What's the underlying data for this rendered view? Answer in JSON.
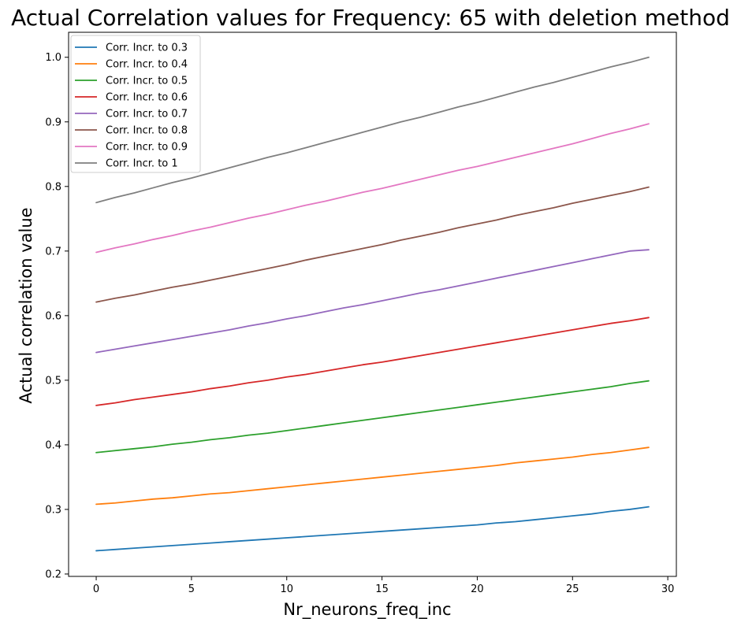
{
  "chart_data": {
    "type": "line",
    "title": "Actual Correlation values for Frequency:  65 with deletion method",
    "xlabel": "Nr_neurons_freq_inc",
    "ylabel": "Actual correlation value",
    "xlim": [
      -1.45,
      30.45
    ],
    "ylim": [
      0.1963,
      1.0387
    ],
    "xticks": [
      0,
      5,
      10,
      15,
      20,
      25,
      30
    ],
    "yticks": [
      0.2,
      0.3,
      0.4,
      0.5,
      0.6,
      0.7,
      0.8,
      0.9,
      1.0
    ],
    "ytick_labels": [
      "0.2",
      "0.3",
      "0.4",
      "0.5",
      "0.6",
      "0.7",
      "0.8",
      "0.9",
      "1.0"
    ],
    "grid": false,
    "legend_position": "top-left",
    "x": [
      0,
      1,
      2,
      3,
      4,
      5,
      6,
      7,
      8,
      9,
      10,
      11,
      12,
      13,
      14,
      15,
      16,
      17,
      18,
      19,
      20,
      21,
      22,
      23,
      24,
      25,
      26,
      27,
      28,
      29
    ],
    "series": [
      {
        "name": "Corr. Incr. to 0.3",
        "color": "#1f77b4",
        "values": [
          0.236,
          0.238,
          0.24,
          0.242,
          0.244,
          0.246,
          0.248,
          0.25,
          0.252,
          0.254,
          0.256,
          0.258,
          0.26,
          0.262,
          0.264,
          0.266,
          0.268,
          0.27,
          0.272,
          0.274,
          0.276,
          0.279,
          0.281,
          0.284,
          0.287,
          0.29,
          0.293,
          0.297,
          0.3,
          0.304
        ]
      },
      {
        "name": "Corr. Incr. to 0.4",
        "color": "#ff7f0e",
        "values": [
          0.308,
          0.31,
          0.313,
          0.316,
          0.318,
          0.321,
          0.324,
          0.326,
          0.329,
          0.332,
          0.335,
          0.338,
          0.341,
          0.344,
          0.347,
          0.35,
          0.353,
          0.356,
          0.359,
          0.362,
          0.365,
          0.368,
          0.372,
          0.375,
          0.378,
          0.381,
          0.385,
          0.388,
          0.392,
          0.396
        ]
      },
      {
        "name": "Corr. Incr. to 0.5",
        "color": "#2ca02c",
        "values": [
          0.388,
          0.391,
          0.394,
          0.397,
          0.401,
          0.404,
          0.408,
          0.411,
          0.415,
          0.418,
          0.422,
          0.426,
          0.43,
          0.434,
          0.438,
          0.442,
          0.446,
          0.45,
          0.454,
          0.458,
          0.462,
          0.466,
          0.47,
          0.474,
          0.478,
          0.482,
          0.486,
          0.49,
          0.495,
          0.499
        ]
      },
      {
        "name": "Corr. Incr. to 0.6",
        "color": "#d62728",
        "values": [
          0.461,
          0.465,
          0.47,
          0.474,
          0.478,
          0.482,
          0.487,
          0.491,
          0.496,
          0.5,
          0.505,
          0.509,
          0.514,
          0.519,
          0.524,
          0.528,
          0.533,
          0.538,
          0.543,
          0.548,
          0.553,
          0.558,
          0.563,
          0.568,
          0.573,
          0.578,
          0.583,
          0.588,
          0.592,
          0.597
        ]
      },
      {
        "name": "Corr. Incr. to 0.7",
        "color": "#9467bd",
        "values": [
          0.543,
          0.548,
          0.553,
          0.558,
          0.563,
          0.568,
          0.573,
          0.578,
          0.584,
          0.589,
          0.595,
          0.6,
          0.606,
          0.612,
          0.617,
          0.623,
          0.629,
          0.635,
          0.64,
          0.646,
          0.652,
          0.658,
          0.664,
          0.67,
          0.676,
          0.682,
          0.688,
          0.694,
          0.7,
          0.702
        ]
      },
      {
        "name": "Corr. Incr. to 0.8",
        "color": "#8c564b",
        "values": [
          0.621,
          0.627,
          0.632,
          0.638,
          0.644,
          0.649,
          0.655,
          0.661,
          0.667,
          0.673,
          0.679,
          0.686,
          0.692,
          0.698,
          0.704,
          0.71,
          0.717,
          0.723,
          0.729,
          0.736,
          0.742,
          0.748,
          0.755,
          0.761,
          0.767,
          0.774,
          0.78,
          0.786,
          0.792,
          0.799
        ]
      },
      {
        "name": "Corr. Incr. to 0.9",
        "color": "#e377c2",
        "values": [
          0.698,
          0.705,
          0.711,
          0.718,
          0.724,
          0.731,
          0.737,
          0.744,
          0.751,
          0.757,
          0.764,
          0.771,
          0.777,
          0.784,
          0.791,
          0.797,
          0.804,
          0.811,
          0.818,
          0.825,
          0.831,
          0.838,
          0.845,
          0.852,
          0.859,
          0.866,
          0.874,
          0.882,
          0.889,
          0.897
        ]
      },
      {
        "name": "Corr. Incr. to 1",
        "color": "#7f7f7f",
        "values": [
          0.775,
          0.783,
          0.79,
          0.798,
          0.806,
          0.813,
          0.821,
          0.829,
          0.837,
          0.845,
          0.852,
          0.86,
          0.868,
          0.876,
          0.884,
          0.892,
          0.9,
          0.907,
          0.915,
          0.923,
          0.93,
          0.938,
          0.946,
          0.954,
          0.961,
          0.969,
          0.977,
          0.985,
          0.992,
          1.0
        ]
      }
    ]
  }
}
